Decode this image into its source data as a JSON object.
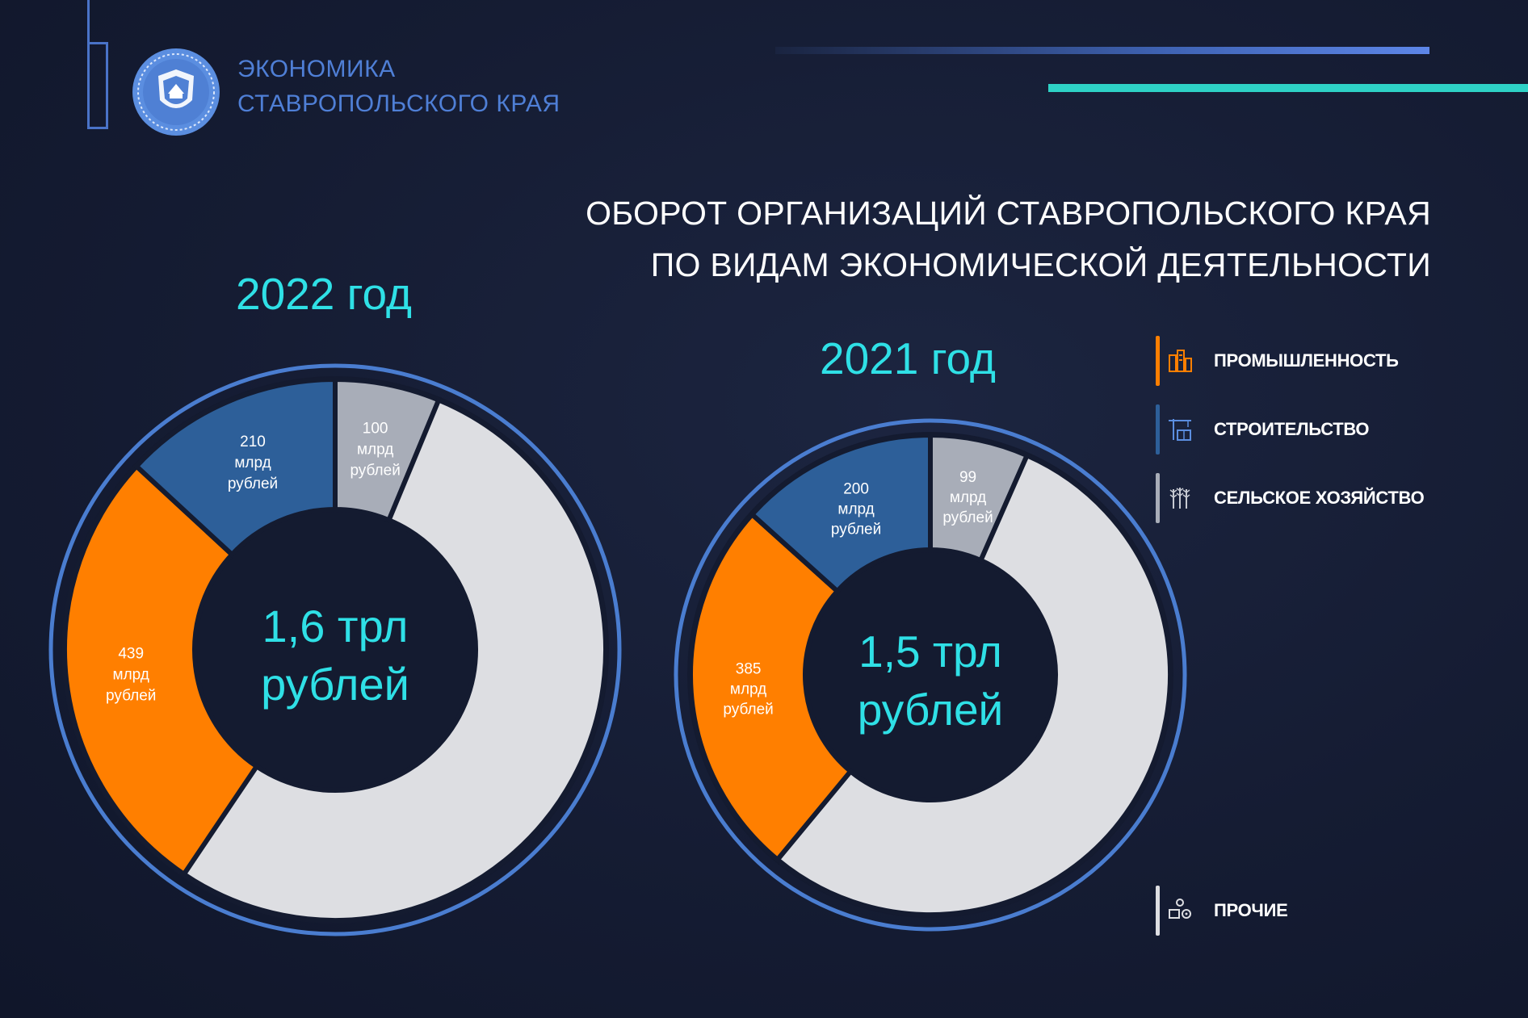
{
  "header": {
    "brand_line1": "ЭКОНОМИКА",
    "brand_line2": "СТАВРОПОЛЬСКОГО КРАЯ",
    "logo_icon": "coat-of-arms-emblem"
  },
  "title": {
    "line1": "ОБОРОТ ОРГАНИЗАЦИЙ СТАВРОПОЛЬСКОГО КРАЯ",
    "line2": "ПО ВИДАМ ЭКОНОМИЧЕСКОЙ ДЕЯТЕЛЬНОСТИ"
  },
  "legend": [
    {
      "label": "ПРОМЫШЛЕННОСТЬ",
      "color": "#ff7f00",
      "icon": "factory-icon"
    },
    {
      "label": "СТРОИТЕЛЬСТВО",
      "color": "#2d5f99",
      "icon": "crane-icon"
    },
    {
      "label": "СЕЛЬСКОЕ ХОЗЯЙСТВО",
      "color": "#a8adb8",
      "icon": "wheat-icon"
    },
    {
      "label": "ПРОЧИЕ",
      "color": "#dddee2",
      "icon": "services-icon"
    }
  ],
  "chart_data": [
    {
      "type": "pie",
      "title": "2022 год",
      "center_line1": "1,6 трл",
      "center_line2": "рублей",
      "total": 1600,
      "unit": "млрд рублей",
      "slices": [
        {
          "category": "СЕЛЬСКОЕ ХОЗЯЙСТВО",
          "value": 100,
          "label": [
            "100",
            "млрд",
            "рублей"
          ],
          "color": "#a8adb8"
        },
        {
          "category": "ПРОЧИЕ",
          "value": 851,
          "label": [],
          "color": "#dddee2"
        },
        {
          "category": "ПРОМЫШЛЕННОСТЬ",
          "value": 439,
          "label": [
            "439",
            "млрд",
            "рублей"
          ],
          "color": "#ff7f00"
        },
        {
          "category": "СТРОИТЕЛЬСТВО",
          "value": 210,
          "label": [
            "210",
            "млрд",
            "рублей"
          ],
          "color": "#2d5f99"
        }
      ]
    },
    {
      "type": "pie",
      "title": "2021 год",
      "center_line1": "1,5 трл",
      "center_line2": "рублей",
      "total": 1500,
      "unit": "млрд рублей",
      "slices": [
        {
          "category": "СЕЛЬСКОЕ ХОЗЯЙСТВО",
          "value": 99,
          "label": [
            "99",
            "млрд",
            "рублей"
          ],
          "color": "#a8adb8"
        },
        {
          "category": "ПРОЧИЕ",
          "value": 816,
          "label": [],
          "color": "#dddee2"
        },
        {
          "category": "ПРОМЫШЛЕННОСТЬ",
          "value": 385,
          "label": [
            "385",
            "млрд",
            "рублей"
          ],
          "color": "#ff7f00"
        },
        {
          "category": "СТРОИТЕЛЬСТВО",
          "value": 200,
          "label": [
            "200",
            "млрд",
            "рублей"
          ],
          "color": "#2d5f99"
        }
      ]
    }
  ]
}
